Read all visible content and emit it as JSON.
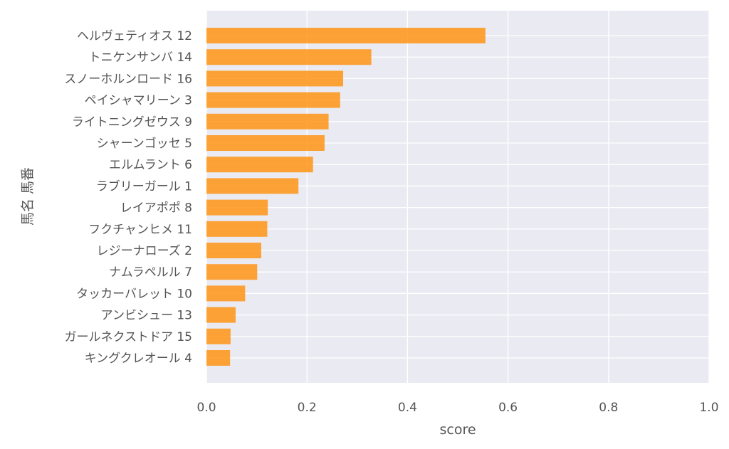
{
  "chart_data": {
    "type": "bar",
    "orientation": "horizontal",
    "xlabel": "score",
    "ylabel": "馬名 馬番",
    "xlim": [
      0.0,
      1.0
    ],
    "xticks": [
      "0.0",
      "0.2",
      "0.4",
      "0.6",
      "0.8",
      "1.0"
    ],
    "grid": true,
    "bar_color": "#ff8c00",
    "background_color": "#eaeaf2",
    "categories": [
      "ヘルヴェティオス 12",
      "トニケンサンバ 14",
      "スノーホルンロード 16",
      "ペイシャマリーン 3",
      "ライトニングゼウス 9",
      "シャーンゴッセ 5",
      "エルムラント 6",
      "ラブリーガール 1",
      "レイアポポ 8",
      "フクチャンヒメ 11",
      "レジーナローズ 2",
      "ナムラペルル 7",
      "タッカーバレット 10",
      "アンビシュー 13",
      "ガールネクストドア 15",
      "キングクレオール 4"
    ],
    "values": [
      0.555,
      0.328,
      0.272,
      0.266,
      0.243,
      0.235,
      0.212,
      0.183,
      0.122,
      0.121,
      0.109,
      0.101,
      0.077,
      0.058,
      0.048,
      0.047
    ]
  }
}
